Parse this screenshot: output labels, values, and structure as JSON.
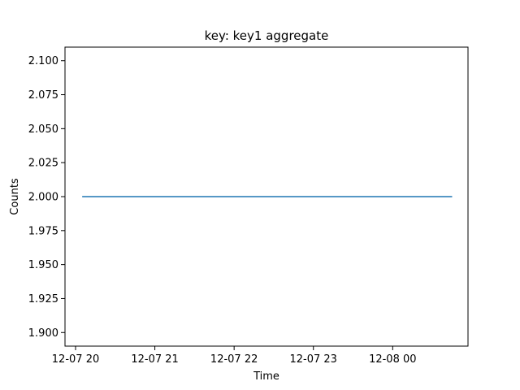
{
  "chart_data": {
    "type": "line",
    "title": "key: key1 aggregate",
    "xlabel": "Time",
    "ylabel": "Counts",
    "xlim": [
      "2023-12-07 19:52",
      "2023-12-08 00:57"
    ],
    "ylim": [
      1.89,
      2.11
    ],
    "grid": false,
    "legend": "none",
    "x_ticks": [
      {
        "value": "2023-12-07 20:00",
        "label": "12-07 20"
      },
      {
        "value": "2023-12-07 21:00",
        "label": "12-07 21"
      },
      {
        "value": "2023-12-07 22:00",
        "label": "12-07 22"
      },
      {
        "value": "2023-12-07 23:00",
        "label": "12-07 23"
      },
      {
        "value": "2023-12-08 00:00",
        "label": "12-08 00"
      }
    ],
    "y_ticks": [
      {
        "value": 1.9,
        "label": "1.900"
      },
      {
        "value": 1.925,
        "label": "1.925"
      },
      {
        "value": 1.95,
        "label": "1.950"
      },
      {
        "value": 1.975,
        "label": "1.975"
      },
      {
        "value": 2.0,
        "label": "2.000"
      },
      {
        "value": 2.025,
        "label": "2.025"
      },
      {
        "value": 2.05,
        "label": "2.050"
      },
      {
        "value": 2.075,
        "label": "2.075"
      },
      {
        "value": 2.1,
        "label": "2.100"
      }
    ],
    "series": [
      {
        "color": "#1f77b4",
        "x": [
          "2023-12-07 20:05",
          "2023-12-08 00:45"
        ],
        "y": [
          2.0,
          2.0
        ]
      }
    ]
  }
}
